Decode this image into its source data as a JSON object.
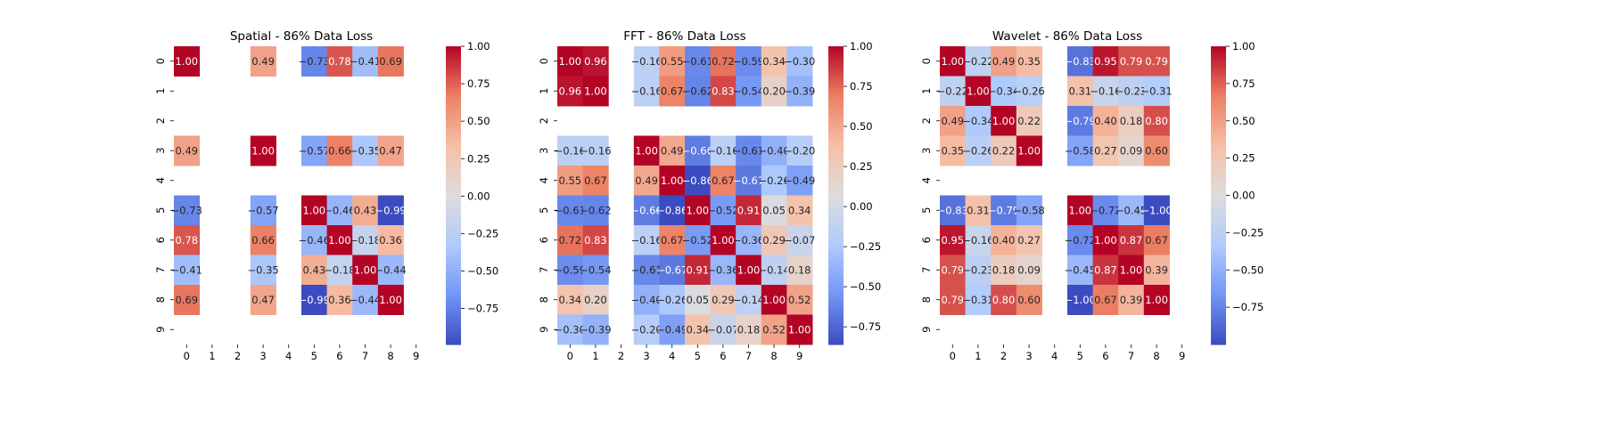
{
  "colormap": {
    "name": "coolwarm",
    "stops": [
      "#3b4cc0",
      "#7396f5",
      "#b0cbfc",
      "#dddcdc",
      "#f6bfa6",
      "#ec7f63",
      "#b40426"
    ]
  },
  "chart_data": [
    {
      "type": "heatmap",
      "title": "Spatial - 86% Data Loss",
      "x_tick_labels": [
        "0",
        "1",
        "2",
        "3",
        "4",
        "5",
        "6",
        "7",
        "8",
        "9"
      ],
      "y_tick_labels": [
        "0",
        "1",
        "2",
        "3",
        "4",
        "5",
        "6",
        "7",
        "8",
        "9"
      ],
      "color_range": [
        -0.99,
        1.0
      ],
      "colorbar_ticks": [
        -0.75,
        -0.5,
        -0.25,
        0.0,
        0.25,
        0.5,
        0.75,
        1.0
      ],
      "colorbar_tick_labels": [
        "−0.75",
        "−0.50",
        "−0.25",
        "0.00",
        "0.25",
        "0.50",
        "0.75",
        "1.00"
      ],
      "matrix": [
        [
          1.0,
          null,
          null,
          0.49,
          null,
          -0.73,
          0.78,
          -0.41,
          0.69,
          null
        ],
        [
          null,
          null,
          null,
          null,
          null,
          null,
          null,
          null,
          null,
          null
        ],
        [
          null,
          null,
          null,
          null,
          null,
          null,
          null,
          null,
          null,
          null
        ],
        [
          0.49,
          null,
          null,
          1.0,
          null,
          -0.57,
          0.66,
          -0.35,
          0.47,
          null
        ],
        [
          null,
          null,
          null,
          null,
          null,
          null,
          null,
          null,
          null,
          null
        ],
        [
          -0.73,
          null,
          null,
          -0.57,
          null,
          1.0,
          -0.46,
          0.43,
          -0.99,
          null
        ],
        [
          0.78,
          null,
          null,
          0.66,
          null,
          -0.46,
          1.0,
          -0.18,
          0.36,
          null
        ],
        [
          -0.41,
          null,
          null,
          -0.35,
          null,
          0.43,
          -0.18,
          1.0,
          -0.44,
          null
        ],
        [
          0.69,
          null,
          null,
          0.47,
          null,
          -0.99,
          0.36,
          -0.44,
          1.0,
          null
        ],
        [
          null,
          null,
          null,
          null,
          null,
          null,
          null,
          null,
          null,
          null
        ]
      ]
    },
    {
      "type": "heatmap",
      "title": "FFT - 86% Data Loss",
      "x_tick_labels": [
        "0",
        "1",
        "2",
        "3",
        "4",
        "5",
        "6",
        "7",
        "8",
        "9"
      ],
      "y_tick_labels": [
        "0",
        "1",
        "2",
        "3",
        "4",
        "5",
        "6",
        "7",
        "8",
        "9"
      ],
      "color_range": [
        -0.86,
        1.0
      ],
      "colorbar_ticks": [
        -0.75,
        -0.5,
        -0.25,
        0.0,
        0.25,
        0.5,
        0.75,
        1.0
      ],
      "colorbar_tick_labels": [
        "−0.75",
        "−0.50",
        "−0.25",
        "0.00",
        "0.25",
        "0.50",
        "0.75",
        "1.00"
      ],
      "matrix": [
        [
          1.0,
          0.96,
          null,
          -0.16,
          0.55,
          -0.61,
          0.72,
          -0.59,
          0.34,
          -0.3
        ],
        [
          0.96,
          1.0,
          null,
          -0.16,
          0.67,
          -0.62,
          0.83,
          -0.54,
          0.2,
          -0.39
        ],
        [
          null,
          null,
          null,
          null,
          null,
          null,
          null,
          null,
          null,
          null
        ],
        [
          -0.16,
          -0.16,
          null,
          1.0,
          0.49,
          -0.66,
          -0.16,
          -0.61,
          -0.4,
          -0.2
        ],
        [
          0.55,
          0.67,
          null,
          0.49,
          1.0,
          -0.86,
          0.67,
          -0.67,
          -0.26,
          -0.49
        ],
        [
          -0.61,
          -0.62,
          null,
          -0.66,
          -0.86,
          1.0,
          -0.52,
          0.91,
          0.05,
          0.34
        ],
        [
          0.72,
          0.83,
          null,
          -0.16,
          0.67,
          -0.52,
          1.0,
          -0.36,
          0.29,
          -0.07
        ],
        [
          -0.59,
          -0.54,
          null,
          -0.61,
          -0.67,
          0.91,
          -0.36,
          1.0,
          -0.14,
          0.18
        ],
        [
          0.34,
          0.2,
          null,
          -0.4,
          -0.26,
          0.05,
          0.29,
          -0.14,
          1.0,
          0.52
        ],
        [
          -0.3,
          -0.39,
          null,
          -0.2,
          -0.49,
          0.34,
          -0.07,
          0.18,
          0.52,
          1.0
        ]
      ]
    },
    {
      "type": "heatmap",
      "title": "Wavelet - 86% Data Loss",
      "x_tick_labels": [
        "0",
        "1",
        "2",
        "3",
        "4",
        "5",
        "6",
        "7",
        "8",
        "9"
      ],
      "y_tick_labels": [
        "0",
        "1",
        "2",
        "3",
        "4",
        "5",
        "6",
        "7",
        "8",
        "9"
      ],
      "color_range": [
        -1.0,
        1.0
      ],
      "colorbar_ticks": [
        -0.75,
        -0.5,
        -0.25,
        0.0,
        0.25,
        0.5,
        0.75,
        1.0
      ],
      "colorbar_tick_labels": [
        "−0.75",
        "−0.50",
        "−0.25",
        "0.00",
        "0.25",
        "0.50",
        "0.75",
        "1.00"
      ],
      "matrix": [
        [
          1.0,
          -0.22,
          0.49,
          0.35,
          null,
          -0.83,
          0.95,
          0.79,
          0.79,
          null
        ],
        [
          -0.22,
          1.0,
          -0.34,
          -0.26,
          null,
          0.31,
          -0.16,
          -0.23,
          -0.31,
          null
        ],
        [
          0.49,
          -0.34,
          1.0,
          0.22,
          null,
          -0.79,
          0.4,
          0.18,
          0.8,
          null
        ],
        [
          0.35,
          -0.26,
          0.22,
          1.0,
          null,
          -0.58,
          0.27,
          0.09,
          0.6,
          null
        ],
        [
          null,
          null,
          null,
          null,
          null,
          null,
          null,
          null,
          null,
          null
        ],
        [
          -0.83,
          0.31,
          -0.79,
          -0.58,
          null,
          1.0,
          -0.72,
          -0.45,
          -1.0,
          null
        ],
        [
          0.95,
          -0.16,
          0.4,
          0.27,
          null,
          -0.72,
          1.0,
          0.87,
          0.67,
          null
        ],
        [
          0.79,
          -0.23,
          0.18,
          0.09,
          null,
          -0.45,
          0.87,
          1.0,
          0.39,
          null
        ],
        [
          0.79,
          -0.31,
          0.8,
          0.6,
          null,
          -1.0,
          0.67,
          0.39,
          1.0,
          null
        ],
        [
          null,
          null,
          null,
          null,
          null,
          null,
          null,
          null,
          null,
          null
        ]
      ]
    }
  ]
}
